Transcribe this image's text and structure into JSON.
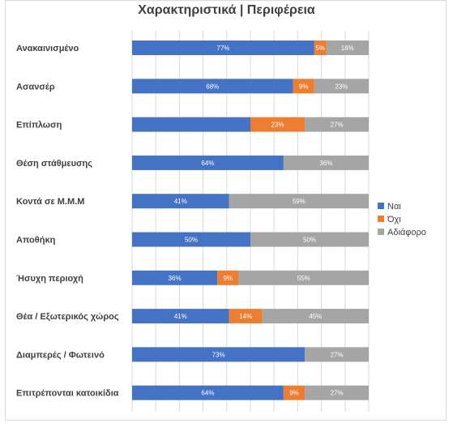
{
  "chart_data": {
    "type": "bar",
    "orientation": "horizontal",
    "stacked": "percent",
    "title": "Χαρακτηριστικά | Περιφέρεια",
    "categories": [
      "Ανακαινισμένο",
      "Ασανσέρ",
      "Επίπλωση",
      "Θέση στάθμευσης",
      "Κοντά σε Μ.Μ.Μ",
      "Αποθήκη",
      "Ήσυχη περιοχή",
      "Θέα / Εξωτερικός χώρος",
      "Διαμπερές / Φωτεινό",
      "Επιτρέπονται κατοικίδια"
    ],
    "series": [
      {
        "name": "Ναι",
        "color": "#4472c4",
        "values": [
          77,
          68,
          50,
          64,
          41,
          50,
          36,
          41,
          73,
          64
        ],
        "labels": [
          "77%",
          "68%",
          "",
          "64%",
          "41%",
          "50%",
          "36%",
          "41%",
          "73%",
          "64%"
        ]
      },
      {
        "name": "Όχι",
        "color": "#ed7d31",
        "values": [
          5,
          9,
          23,
          0,
          0,
          0,
          9,
          14,
          0,
          9
        ],
        "labels": [
          "5%",
          "9%",
          "23%",
          "",
          "",
          "",
          "9%",
          "14%",
          "",
          "9%"
        ]
      },
      {
        "name": "Αδιάφορο",
        "color": "#a5a5a5",
        "values": [
          18,
          23,
          27,
          36,
          59,
          50,
          55,
          45,
          27,
          27
        ],
        "labels": [
          "18%",
          "23%",
          "27%",
          "36%",
          "59%",
          "50%",
          "55%",
          "45%",
          "27%",
          "27%"
        ]
      }
    ],
    "xlim": [
      0,
      100
    ],
    "grid": true,
    "legend": "right"
  }
}
